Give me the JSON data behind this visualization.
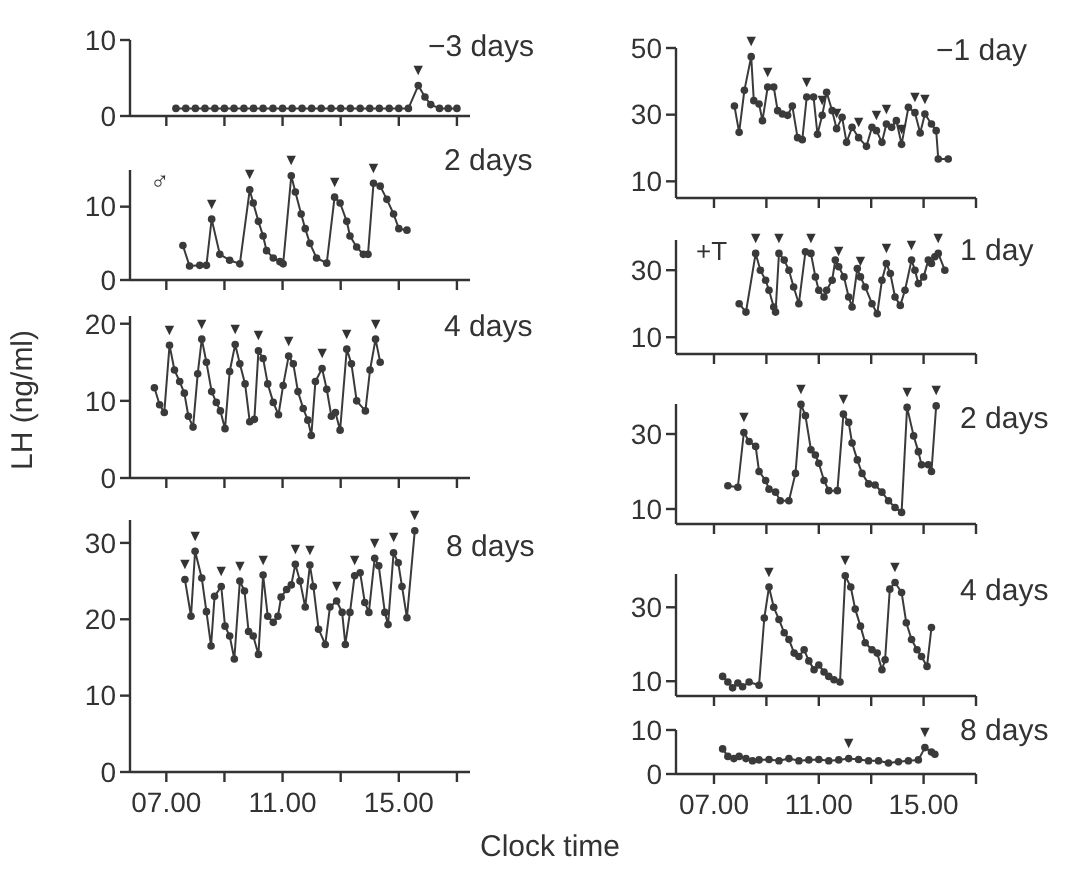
{
  "chart_data": [
    {
      "type": "line",
      "title": "−3 days",
      "marker": "circle",
      "color": "#3a3a3a",
      "tick_labels": "y",
      "xlim": [
        5.75,
        17.45
      ],
      "ylim": [
        0,
        10
      ],
      "yticks": [
        0,
        10
      ],
      "xticks": [
        {
          "value": 7,
          "label": null
        },
        {
          "value": 9,
          "label": null
        },
        {
          "value": 11,
          "label": null
        },
        {
          "value": 13,
          "label": null
        },
        {
          "value": 15,
          "label": null
        },
        {
          "value": 17,
          "label": null
        }
      ],
      "x": [
        7.33,
        7.67,
        8,
        8.33,
        8.67,
        9,
        9.33,
        9.67,
        10,
        10.33,
        10.67,
        11,
        11.33,
        11.67,
        12,
        12.33,
        12.67,
        13,
        13.33,
        13.67,
        14,
        14.33,
        14.67,
        15,
        15.33,
        15.67,
        15.9,
        16.1,
        16.4,
        16.7,
        17
      ],
      "values": [
        1,
        1,
        1,
        1,
        1,
        1,
        1,
        1,
        1,
        1,
        1,
        1,
        1,
        1,
        1,
        1,
        1,
        1,
        1,
        1,
        1,
        1,
        1,
        1,
        1,
        4,
        2.5,
        1.5,
        1,
        1,
        1
      ],
      "annotations": [
        {
          "text": "▼",
          "x": 15.67,
          "y": 4
        }
      ]
    },
    {
      "type": "line",
      "title": "2 days",
      "marker": "circle",
      "color": "#3a3a3a",
      "tick_labels": "y",
      "xlim": [
        5.75,
        17.45
      ],
      "ylim": [
        0,
        15
      ],
      "yticks": [
        0,
        10
      ],
      "xticks": [
        {
          "value": 7,
          "label": null
        },
        {
          "value": 9,
          "label": null
        },
        {
          "value": 11,
          "label": null
        },
        {
          "value": 13,
          "label": null
        },
        {
          "value": 15,
          "label": null
        },
        {
          "value": 17,
          "label": null
        }
      ],
      "x": [
        7.57,
        7.8,
        8.15,
        8.38,
        8.56,
        8.84,
        9.18,
        9.53,
        9.87,
        9.99,
        10.17,
        10.33,
        10.45,
        10.68,
        10.91,
        11.02,
        11.3,
        11.44,
        11.64,
        11.78,
        11.94,
        12.17,
        12.52,
        12.79,
        12.98,
        13.21,
        13.32,
        13.55,
        13.78,
        13.94,
        14.13,
        14.36,
        14.59,
        14.82,
        15,
        15.28
      ],
      "values": [
        4.7,
        1.9,
        2,
        2,
        8.3,
        3.5,
        2.7,
        2.2,
        12.3,
        10.5,
        8,
        6,
        4,
        3,
        2.5,
        2.2,
        14.2,
        12,
        9,
        7,
        5,
        3,
        2.3,
        11.3,
        10.5,
        8,
        6,
        4.5,
        3.5,
        3.5,
        13.2,
        12.8,
        11,
        9,
        7,
        6.8
      ],
      "annotations": [
        "♂",
        {
          "text": "▼",
          "x": 8.56,
          "y": 8.3
        },
        {
          "text": "▼",
          "x": 9.87,
          "y": 12.3
        },
        {
          "text": "▼",
          "x": 11.3,
          "y": 14.2
        },
        {
          "text": "▼",
          "x": 12.79,
          "y": 11.3
        },
        {
          "text": "▼",
          "x": 14.13,
          "y": 13.2
        }
      ]
    },
    {
      "type": "line",
      "title": "4 days",
      "ylabel": "LH (ng/ml)",
      "marker": "circle",
      "color": "#3a3a3a",
      "tick_labels": "y",
      "xlim": [
        5.75,
        17.45
      ],
      "ylim": [
        0,
        21
      ],
      "yticks": [
        0,
        10,
        20
      ],
      "xticks": [
        {
          "value": 7,
          "label": null
        },
        {
          "value": 9,
          "label": null
        },
        {
          "value": 11,
          "label": null
        },
        {
          "value": 13,
          "label": null
        },
        {
          "value": 15,
          "label": null
        },
        {
          "value": 17,
          "label": null
        }
      ],
      "x": [
        6.59,
        6.77,
        6.93,
        7.11,
        7.28,
        7.46,
        7.62,
        7.76,
        7.92,
        8.08,
        8.22,
        8.38,
        8.56,
        8.72,
        8.86,
        9.02,
        9.18,
        9.37,
        9.53,
        9.71,
        9.87,
        10.03,
        10.17,
        10.33,
        10.49,
        10.68,
        10.86,
        11.02,
        11.21,
        11.37,
        11.53,
        11.71,
        11.87,
        11.99,
        12.13,
        12.36,
        12.52,
        12.68,
        12.82,
        12.98,
        13.21,
        13.37,
        13.55,
        13.85,
        14.01,
        14.2,
        14.36
      ],
      "values": [
        11.7,
        9.5,
        8.5,
        17.2,
        14,
        12.5,
        11,
        8,
        6.6,
        13.5,
        18,
        15,
        11.2,
        9.8,
        8.7,
        6.4,
        13.8,
        17.3,
        14.8,
        12.2,
        7.3,
        7.6,
        16.5,
        15.5,
        12.2,
        9.8,
        8.2,
        12,
        15.8,
        14.8,
        11.2,
        9,
        7.5,
        5.5,
        12.5,
        14.2,
        11.5,
        8,
        8.5,
        6.2,
        16.7,
        14.8,
        10,
        8.7,
        14,
        18,
        15
      ],
      "annotations": [
        {
          "text": "▼",
          "x": 7.11,
          "y": 17.2
        },
        {
          "text": "▼",
          "x": 8.22,
          "y": 18
        },
        {
          "text": "▼",
          "x": 9.37,
          "y": 17.3
        },
        {
          "text": "▼",
          "x": 10.17,
          "y": 16.5
        },
        {
          "text": "▼",
          "x": 11.21,
          "y": 15.8
        },
        {
          "text": "▼",
          "x": 12.36,
          "y": 14.2
        },
        {
          "text": "▼",
          "x": 13.21,
          "y": 16.7
        },
        {
          "text": "▼",
          "x": 14.2,
          "y": 18
        }
      ]
    },
    {
      "type": "line",
      "title": "8 days",
      "xlabel": "Clock time",
      "marker": "circle",
      "color": "#3a3a3a",
      "xlim": [
        5.75,
        17.45
      ],
      "ylim": [
        0,
        33
      ],
      "yticks": [
        0,
        10,
        20,
        30
      ],
      "xticks": [
        {
          "value": 7,
          "label": "07.00"
        },
        {
          "value": 9,
          "label": null
        },
        {
          "value": 11,
          "label": "11.00"
        },
        {
          "value": 13,
          "label": null
        },
        {
          "value": 15,
          "label": "15.00"
        },
        {
          "value": 17,
          "label": null
        }
      ],
      "x": [
        7.64,
        7.85,
        7.99,
        8.22,
        8.38,
        8.54,
        8.66,
        8.89,
        9.02,
        9.18,
        9.34,
        9.53,
        9.69,
        9.83,
        9.99,
        10.17,
        10.33,
        10.49,
        10.68,
        10.84,
        10.95,
        11.14,
        11.3,
        11.44,
        11.6,
        11.78,
        11.94,
        12.06,
        12.24,
        12.47,
        12.63,
        12.86,
        13.05,
        13.16,
        13.32,
        13.48,
        13.67,
        13.83,
        13.97,
        14.17,
        14.31,
        14.52,
        14.63,
        14.82,
        14.98,
        15.11,
        15.28,
        15.55
      ],
      "values": [
        25.2,
        20.4,
        28.9,
        25.4,
        21,
        16.5,
        23,
        24.3,
        19.1,
        17.8,
        14.8,
        25,
        23.7,
        18.4,
        17.8,
        15.4,
        25.8,
        20.4,
        19.6,
        20.4,
        22.9,
        23.9,
        24.5,
        27.2,
        25,
        21.6,
        27.1,
        24.3,
        18.7,
        16.7,
        21.6,
        22.4,
        20.9,
        16.7,
        20.9,
        25.7,
        26.1,
        22.2,
        20.9,
        28,
        27,
        20.9,
        19.3,
        28.7,
        27.4,
        24.3,
        20.2,
        31.6
      ],
      "annotations": [
        {
          "text": "▼",
          "x": 7.64,
          "y": 25.2
        },
        {
          "text": "▼",
          "x": 7.99,
          "y": 28.9
        },
        {
          "text": "▼",
          "x": 8.89,
          "y": 24.3
        },
        {
          "text": "▼",
          "x": 9.53,
          "y": 25
        },
        {
          "text": "▼",
          "x": 10.33,
          "y": 25.8
        },
        {
          "text": "▼",
          "x": 11.44,
          "y": 27.2
        },
        {
          "text": "▼",
          "x": 11.94,
          "y": 27.1
        },
        {
          "text": "▼",
          "x": 12.86,
          "y": 22.4
        },
        {
          "text": "▼",
          "x": 13.48,
          "y": 25.7
        },
        {
          "text": "▼",
          "x": 14.17,
          "y": 28
        },
        {
          "text": "▼",
          "x": 14.82,
          "y": 28.7
        },
        {
          "text": "▼",
          "x": 15.55,
          "y": 31.6
        }
      ]
    },
    {
      "type": "line",
      "title": "−1 day",
      "marker": "circle",
      "color": "#3a3a3a",
      "tick_labels": "y",
      "xlim": [
        5.55,
        17
      ],
      "ylim": [
        5,
        50
      ],
      "yticks": [
        10,
        30,
        50
      ],
      "xticks": [
        {
          "value": 7,
          "label": null
        },
        {
          "value": 9,
          "label": null
        },
        {
          "value": 11,
          "label": null
        },
        {
          "value": 13,
          "label": null
        },
        {
          "value": 15,
          "label": null
        },
        {
          "value": 17,
          "label": null
        }
      ],
      "x": [
        7.78,
        7.96,
        8.16,
        8.42,
        8.52,
        8.72,
        8.85,
        9.05,
        9.28,
        9.43,
        9.61,
        9.81,
        9.99,
        10.19,
        10.37,
        10.54,
        10.8,
        10.95,
        11.13,
        11.3,
        11.51,
        11.68,
        11.89,
        12.06,
        12.27,
        12.52,
        12.82,
        13.03,
        13.2,
        13.41,
        13.58,
        13.78,
        13.96,
        14.16,
        14.42,
        14.67,
        14.87,
        15.05,
        15.3,
        15.48,
        15.56,
        15.94
      ],
      "values": [
        32.6,
        24.7,
        37.3,
        47.4,
        34.2,
        33.2,
        28.2,
        38.3,
        38.3,
        31.2,
        30.2,
        29.8,
        32.6,
        23.1,
        22.5,
        35.3,
        35.3,
        24.1,
        29.8,
        36.7,
        31.2,
        25.8,
        29.2,
        21.7,
        26.2,
        23.1,
        20.5,
        26.2,
        25.2,
        21.7,
        27.2,
        26.2,
        28.2,
        21.1,
        32.2,
        30.6,
        24.5,
        30.2,
        27.2,
        25.2,
        16.7,
        16.7
      ],
      "annotations": [
        {
          "text": "▼",
          "x": 8.42,
          "y": 47.4
        },
        {
          "text": "▼",
          "x": 9.05,
          "y": 38.3
        },
        {
          "text": "▼",
          "x": 10.54,
          "y": 35.3
        },
        {
          "text": "▼",
          "x": 11.13,
          "y": 29.8
        },
        {
          "text": "▼",
          "x": 11.68,
          "y": 25.8
        },
        {
          "text": "▼",
          "x": 12.52,
          "y": 23.1
        },
        {
          "text": "▼",
          "x": 13.2,
          "y": 25.2
        },
        {
          "text": "▼",
          "x": 13.58,
          "y": 27.2
        },
        {
          "text": "▼",
          "x": 14.16,
          "y": 21.1
        },
        {
          "text": "▼",
          "x": 14.67,
          "y": 30.6
        },
        {
          "text": "▼",
          "x": 15.05,
          "y": 30.2
        }
      ]
    },
    {
      "type": "line",
      "title": "1 day",
      "marker": "circle",
      "color": "#3a3a3a",
      "tick_labels": "y",
      "xlim": [
        5.55,
        17
      ],
      "ylim": [
        5,
        39
      ],
      "yticks": [
        10,
        30
      ],
      "xticks": [
        {
          "value": 7,
          "label": null
        },
        {
          "value": 9,
          "label": null
        },
        {
          "value": 11,
          "label": null
        },
        {
          "value": 13,
          "label": null
        },
        {
          "value": 15,
          "label": null
        },
        {
          "value": 17,
          "label": null
        }
      ],
      "x": [
        7.96,
        8.22,
        8.59,
        8.77,
        8.97,
        9.1,
        9.28,
        9.35,
        9.48,
        9.68,
        9.86,
        10.04,
        10.24,
        10.49,
        10.7,
        10.87,
        11,
        11.2,
        11.3,
        11.51,
        11.63,
        11.76,
        11.96,
        12.14,
        12.27,
        12.47,
        12.59,
        12.77,
        13.03,
        13.23,
        13.41,
        13.58,
        13.73,
        13.91,
        14.11,
        14.29,
        14.54,
        14.67,
        14.8,
        15,
        15.18,
        15.3,
        15.43,
        15.56,
        15.81
      ],
      "values": [
        20,
        17.5,
        35,
        30,
        27,
        24,
        19,
        17.5,
        35,
        33,
        30,
        25,
        20,
        35.5,
        35,
        28,
        24,
        22,
        24,
        27,
        33,
        31,
        28,
        22,
        19,
        30.5,
        28,
        25,
        20,
        17,
        27,
        32,
        29,
        22,
        19.5,
        24,
        33,
        30,
        26,
        28,
        33,
        32,
        34,
        35,
        30
      ],
      "annotations": [
        "+T",
        {
          "text": "▼",
          "x": 8.59,
          "y": 35
        },
        {
          "text": "▼",
          "x": 9.48,
          "y": 35
        },
        {
          "text": "▼",
          "x": 10.7,
          "y": 35
        },
        {
          "text": "▼",
          "x": 11.76,
          "y": 31
        },
        {
          "text": "▼",
          "x": 12.59,
          "y": 28
        },
        {
          "text": "▼",
          "x": 13.58,
          "y": 32
        },
        {
          "text": "▼",
          "x": 14.54,
          "y": 33
        },
        {
          "text": "▼",
          "x": 15.56,
          "y": 35
        }
      ]
    },
    {
      "type": "line",
      "title": "2 days",
      "marker": "circle",
      "color": "#3a3a3a",
      "tick_labels": "y",
      "xlim": [
        5.55,
        17
      ],
      "ylim": [
        6,
        38
      ],
      "yticks": [
        10,
        30
      ],
      "xticks": [
        {
          "value": 7,
          "label": null
        },
        {
          "value": 9,
          "label": null
        },
        {
          "value": 11,
          "label": null
        },
        {
          "value": 13,
          "label": null
        },
        {
          "value": 15,
          "label": null
        },
        {
          "value": 17,
          "label": null
        }
      ],
      "x": [
        7.53,
        7.91,
        8.14,
        8.34,
        8.59,
        8.72,
        8.97,
        9.1,
        9.35,
        9.53,
        9.86,
        10.11,
        10.32,
        10.49,
        10.7,
        10.87,
        11,
        11.2,
        11.38,
        11.71,
        11.94,
        12.14,
        12.27,
        12.47,
        12.65,
        12.9,
        13.15,
        13.41,
        13.66,
        13.91,
        14.16,
        14.37,
        14.62,
        14.8,
        14.92,
        15.18,
        15.3,
        15.48
      ],
      "values": [
        16.2,
        15.8,
        30.4,
        28,
        26.7,
        20,
        17.6,
        15.3,
        14.5,
        12.2,
        12.2,
        19.5,
        37.9,
        34.9,
        25.8,
        24.4,
        22.2,
        17.6,
        14.9,
        14.9,
        35.3,
        33.1,
        27.6,
        23.1,
        19.5,
        16.7,
        16.4,
        14.5,
        12.2,
        10.4,
        9.1,
        37.1,
        29.5,
        25.3,
        21.8,
        21.8,
        20,
        37.5
      ],
      "annotations": [
        {
          "text": "▼",
          "x": 8.14,
          "y": 30.4
        },
        {
          "text": "▼",
          "x": 10.32,
          "y": 37.9
        },
        {
          "text": "▼",
          "x": 11.94,
          "y": 35.3
        },
        {
          "text": "▼",
          "x": 14.37,
          "y": 37.1
        },
        {
          "text": "▼",
          "x": 15.48,
          "y": 37.5
        }
      ]
    },
    {
      "type": "line",
      "title": "4 days",
      "marker": "circle",
      "color": "#3a3a3a",
      "tick_labels": "y",
      "xlim": [
        5.55,
        17
      ],
      "ylim": [
        6,
        39
      ],
      "yticks": [
        10,
        30
      ],
      "xticks": [
        {
          "value": 7,
          "label": null
        },
        {
          "value": 9,
          "label": null
        },
        {
          "value": 11,
          "label": null
        },
        {
          "value": 13,
          "label": null
        },
        {
          "value": 15,
          "label": null
        },
        {
          "value": 17,
          "label": null
        }
      ],
      "x": [
        7.33,
        7.53,
        7.71,
        7.91,
        8.09,
        8.34,
        8.72,
        8.92,
        9.1,
        9.28,
        9.48,
        9.68,
        9.86,
        10.06,
        10.24,
        10.44,
        10.62,
        10.82,
        11,
        11.2,
        11.38,
        11.58,
        11.81,
        12.01,
        12.22,
        12.39,
        12.59,
        12.77,
        13.03,
        13.23,
        13.41,
        13.53,
        13.71,
        13.91,
        14.16,
        14.34,
        14.54,
        14.75,
        14.92,
        15.13,
        15.3
      ],
      "values": [
        11.3,
        9.8,
        8.2,
        9.5,
        8.5,
        9.8,
        8.9,
        27.1,
        35.5,
        30,
        26.7,
        23.1,
        21.3,
        17.6,
        16.7,
        18.5,
        15.5,
        13.1,
        14.4,
        12.5,
        11.3,
        10.4,
        9.8,
        38.5,
        35.5,
        29.5,
        24.9,
        20.4,
        18.5,
        17.6,
        13.1,
        15.8,
        34.9,
        36.7,
        34,
        25.8,
        21.3,
        18.5,
        16.7,
        14,
        24.5
      ],
      "annotations": [
        {
          "text": "▼",
          "x": 9.1,
          "y": 35.5
        },
        {
          "text": "▼",
          "x": 12.01,
          "y": 38.5
        },
        {
          "text": "▼",
          "x": 13.91,
          "y": 36.7
        }
      ]
    },
    {
      "type": "line",
      "title": "8 days",
      "marker": "circle",
      "color": "#3a3a3a",
      "xlim": [
        5.55,
        17
      ],
      "ylim": [
        0,
        10
      ],
      "yticks": [
        0,
        10
      ],
      "xticks": [
        {
          "value": 7,
          "label": "07.00"
        },
        {
          "value": 9,
          "label": null
        },
        {
          "value": 11,
          "label": "11.00"
        },
        {
          "value": 13,
          "label": null
        },
        {
          "value": 15,
          "label": "15.00"
        },
        {
          "value": 17,
          "label": null
        }
      ],
      "x": [
        7.33,
        7.53,
        7.76,
        7.96,
        8.22,
        8.47,
        8.72,
        9.1,
        9.48,
        9.86,
        10.24,
        10.62,
        11,
        11.38,
        11.76,
        12.14,
        12.52,
        12.9,
        13.28,
        13.66,
        14.04,
        14.42,
        14.8,
        15.05,
        15.3,
        15.43
      ],
      "values": [
        5.7,
        4,
        3.5,
        4,
        3.5,
        3,
        3.2,
        3.3,
        3,
        3.5,
        3,
        3.2,
        3.3,
        3,
        3.2,
        3.5,
        3.3,
        3,
        3,
        2.5,
        2.8,
        3,
        3.2,
        6,
        5,
        4.5
      ],
      "annotations": [
        {
          "text": "▼",
          "x": 12.14,
          "y": 3.5
        },
        {
          "text": "▼",
          "x": 15.05,
          "y": 6
        }
      ]
    }
  ]
}
